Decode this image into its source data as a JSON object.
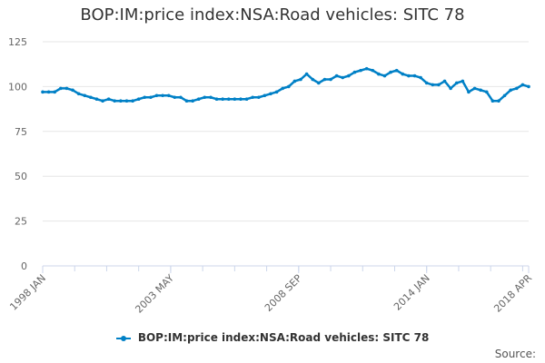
{
  "chart_data": {
    "type": "line",
    "title": "BOP:IM:price index:NSA:Road vehicles: SITC 78",
    "xlabel": "",
    "ylabel": "",
    "ylim": [
      0,
      125
    ],
    "yticks": [
      "0",
      "25",
      "50",
      "75",
      "100",
      "125"
    ],
    "xticks": [
      "1998 JAN",
      "2003 MAY",
      "2008 SEP",
      "2014 JAN",
      "2018 APR"
    ],
    "x_range": [
      "1998 Q1",
      "2018 Q2"
    ],
    "x_step": "quarterly (approx.)",
    "grid": true,
    "legend_position": "bottom",
    "series": [
      {
        "name": "BOP:IM:price index:NSA:Road vehicles: SITC 78",
        "color": "#0080c6",
        "values": [
          97,
          97,
          97,
          99,
          99,
          98,
          96,
          95,
          94,
          93,
          92,
          93,
          92,
          92,
          92,
          92,
          93,
          94,
          94,
          95,
          95,
          95,
          94,
          94,
          92,
          92,
          93,
          94,
          94,
          93,
          93,
          93,
          93,
          93,
          93,
          94,
          94,
          95,
          96,
          97,
          99,
          100,
          103,
          104,
          107,
          104,
          102,
          104,
          104,
          106,
          105,
          106,
          108,
          109,
          110,
          109,
          107,
          106,
          108,
          109,
          107,
          106,
          106,
          105,
          102,
          101,
          101,
          103,
          99,
          102,
          103,
          97,
          99,
          98,
          97,
          92,
          92,
          95,
          98,
          99,
          101,
          100
        ]
      }
    ]
  },
  "source_label": "Source:"
}
